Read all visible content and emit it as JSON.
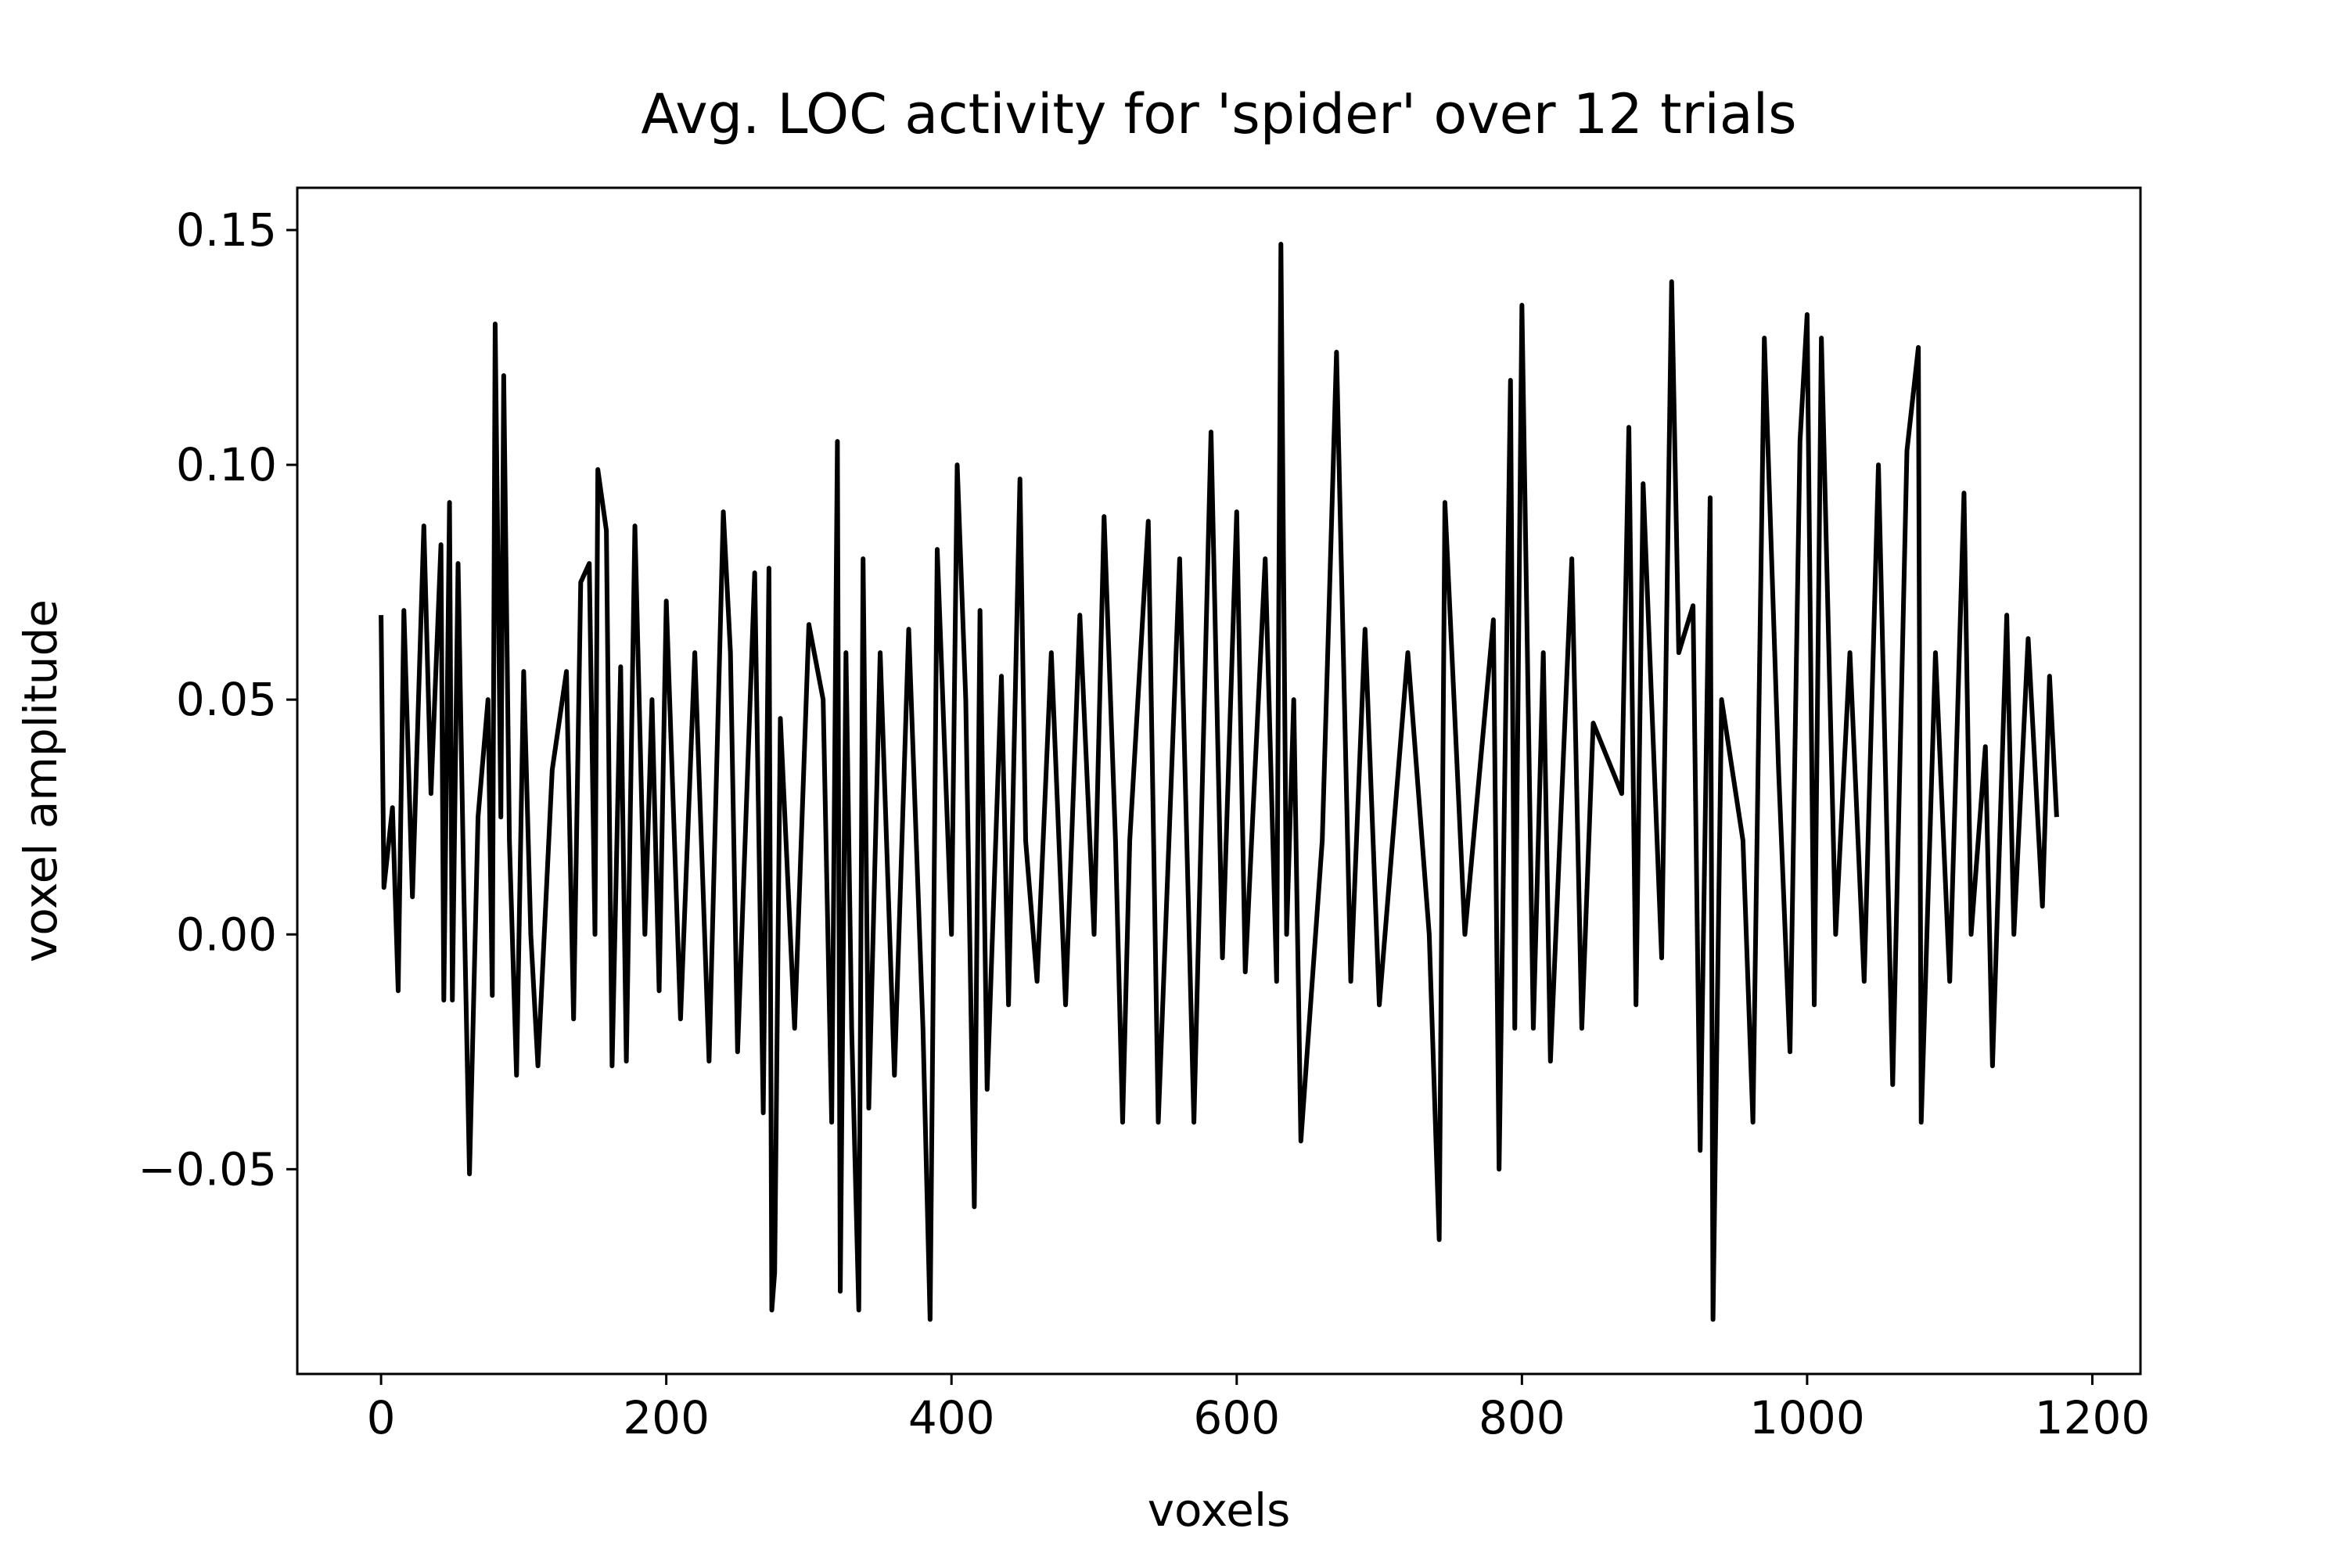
{
  "chart_data": {
    "type": "line",
    "title": "Avg. LOC activity for 'spider' over 12 trials",
    "xlabel": "voxels",
    "ylabel": "voxel amplitude",
    "color": "#000000",
    "xlim": [
      -58.75,
      1233.75
    ],
    "ylim": [
      -0.0936,
      0.159
    ],
    "xticks": [
      0,
      200,
      400,
      600,
      800,
      1000,
      1200
    ],
    "yticks": [
      {
        "value": -0.05,
        "label": "−0.05"
      },
      {
        "value": 0,
        "label": "0.00"
      },
      0.05,
      {
        "value": 0.1,
        "label": "0.10"
      },
      0.15
    ],
    "x": [
      0,
      2,
      8,
      12,
      16,
      22,
      30,
      35,
      42,
      44,
      48,
      50,
      54,
      58,
      62,
      68,
      75,
      78,
      80,
      84,
      86,
      90,
      95,
      100,
      105,
      110,
      120,
      130,
      135,
      140,
      146,
      150,
      152,
      158,
      162,
      168,
      172,
      178,
      185,
      190,
      195,
      200,
      210,
      220,
      230,
      240,
      245,
      250,
      262,
      268,
      272,
      274,
      276,
      280,
      290,
      300,
      310,
      316,
      320,
      322,
      326,
      330,
      335,
      338,
      342,
      350,
      360,
      370,
      380,
      385,
      390,
      400,
      404,
      410,
      416,
      420,
      425,
      435,
      440,
      448,
      452,
      460,
      470,
      480,
      490,
      500,
      507,
      515,
      520,
      525,
      538,
      545,
      560,
      570,
      582,
      590,
      600,
      606,
      620,
      628,
      631,
      635,
      640,
      645,
      660,
      670,
      680,
      690,
      700,
      720,
      735,
      742,
      746,
      760,
      780,
      784,
      792,
      795,
      800,
      808,
      815,
      820,
      835,
      842,
      850,
      870,
      875,
      880,
      885,
      898,
      905,
      910,
      920,
      925,
      932,
      934,
      940,
      955,
      962,
      970,
      980,
      988,
      995,
      1000,
      1005,
      1010,
      1020,
      1030,
      1040,
      1050,
      1060,
      1070,
      1078,
      1080,
      1090,
      1100,
      1110,
      1115,
      1125,
      1130,
      1140,
      1145,
      1155,
      1165,
      1170,
      1175
    ],
    "values": [
      0.068,
      0.01,
      0.027,
      -0.012,
      0.069,
      0.008,
      0.087,
      0.03,
      0.083,
      -0.014,
      0.092,
      -0.014,
      0.079,
      0.01,
      -0.051,
      0.025,
      0.05,
      -0.013,
      0.13,
      0.025,
      0.119,
      0.02,
      -0.03,
      0.056,
      0.0,
      -0.028,
      0.035,
      0.056,
      -0.018,
      0.075,
      0.079,
      0.0,
      0.099,
      0.086,
      -0.028,
      0.057,
      -0.027,
      0.087,
      0.0,
      0.05,
      -0.012,
      0.071,
      -0.018,
      0.06,
      -0.027,
      0.09,
      0.06,
      -0.025,
      0.077,
      -0.038,
      0.078,
      -0.08,
      -0.072,
      0.046,
      -0.02,
      0.066,
      0.05,
      -0.04,
      0.105,
      -0.076,
      0.06,
      -0.02,
      -0.08,
      0.08,
      -0.037,
      0.06,
      -0.03,
      0.065,
      -0.02,
      -0.082,
      0.082,
      0.0,
      0.1,
      0.05,
      -0.058,
      0.069,
      -0.033,
      0.055,
      -0.015,
      0.097,
      0.02,
      -0.01,
      0.06,
      -0.015,
      0.068,
      0.0,
      0.089,
      0.02,
      -0.04,
      0.02,
      0.088,
      -0.04,
      0.08,
      -0.04,
      0.107,
      -0.005,
      0.09,
      -0.008,
      0.08,
      -0.01,
      0.147,
      0.0,
      0.05,
      -0.044,
      0.02,
      0.124,
      -0.01,
      0.065,
      -0.015,
      0.06,
      0.0,
      -0.065,
      0.092,
      0.0,
      0.067,
      -0.05,
      0.118,
      -0.02,
      0.134,
      -0.02,
      0.06,
      -0.027,
      0.08,
      -0.02,
      0.045,
      0.03,
      0.108,
      -0.015,
      0.096,
      -0.005,
      0.139,
      0.06,
      0.07,
      -0.046,
      0.093,
      -0.082,
      0.05,
      0.02,
      -0.04,
      0.127,
      0.035,
      -0.025,
      0.105,
      0.132,
      -0.015,
      0.127,
      0.0,
      0.06,
      -0.01,
      0.1,
      -0.032,
      0.103,
      0.125,
      -0.04,
      0.06,
      -0.01,
      0.094,
      0.0,
      0.04,
      -0.028,
      0.068,
      0.0,
      0.063,
      0.006,
      0.055,
      0.025
    ]
  }
}
